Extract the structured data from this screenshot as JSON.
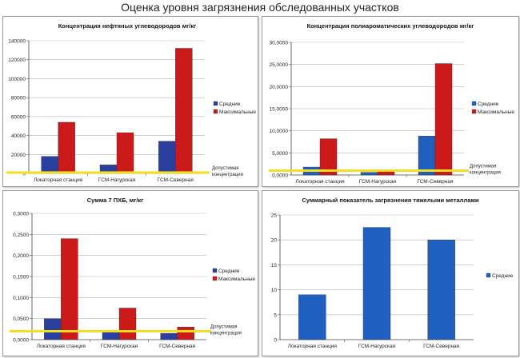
{
  "page_title": "Оценка уровня загрязнения обследованных участков",
  "colors": {
    "avg": "#2b3f9e",
    "max": "#cc1a1a",
    "avg_light": "#1f5fbf",
    "threshold": "#f0e020"
  },
  "chart_data": [
    {
      "type": "bar",
      "title": "Концентрация нефтяных углеводородов мг/кг",
      "categories": [
        "Локаторная станция",
        "ГСМ-Нагурская",
        "ГСМ-Северная"
      ],
      "series": [
        {
          "name": "Средние",
          "values": [
            18000,
            9000,
            34000
          ]
        },
        {
          "name": "Максимальные",
          "values": [
            54000,
            43000,
            132000
          ]
        }
      ],
      "ylim": [
        0,
        140000
      ],
      "yticks": [
        "0",
        "20000",
        "40000",
        "60000",
        "80000",
        "100000",
        "120000",
        "140000"
      ],
      "threshold": {
        "value": 1000,
        "label_line1": "Допустимая",
        "label_line2": "концентрация"
      },
      "legend": "right"
    },
    {
      "type": "bar",
      "title": "Концентрация полиароматических углеводородов мг/кг",
      "categories": [
        "Локаторная станция",
        "ГСМ-Нагурская",
        "ГСМ-Северная"
      ],
      "series": [
        {
          "name": "Средние",
          "values": [
            1800,
            600,
            8800
          ]
        },
        {
          "name": "Максимальные",
          "values": [
            8200,
            900,
            25200
          ]
        }
      ],
      "ylim": [
        0,
        30000
      ],
      "yticks": [
        "0,0000",
        "5,0000",
        "10,0000",
        "15,0000",
        "20,0000",
        "25,0000",
        "30,0000"
      ],
      "threshold": {
        "value": 1000,
        "label_line1": "Допустимая",
        "label_line2": "концентрация"
      },
      "legend": "right"
    },
    {
      "type": "bar",
      "title": "Сумма 7 ПХБ, мг/кг",
      "categories": [
        "Локаторная станция",
        "ГСМ-Нагурская",
        "ГСМ-Северная"
      ],
      "series": [
        {
          "name": "Средние",
          "values": [
            0.05,
            0.02,
            0.015
          ]
        },
        {
          "name": "Максимальные",
          "values": [
            0.24,
            0.075,
            0.03
          ]
        }
      ],
      "ylim": [
        0,
        0.3
      ],
      "yticks": [
        "0,0000",
        "0,0500",
        "0,1000",
        "0,1500",
        "0,2000",
        "0,2500",
        "0,3000"
      ],
      "threshold": {
        "value": 0.02,
        "label_line1": "Допустимая",
        "label_line2": "концентрация"
      },
      "legend": "right"
    },
    {
      "type": "bar",
      "title": "Суммарный показатель загрязнения тяжелыми металлами",
      "categories": [
        "Локаторная станция",
        "ГСМ-Нагурская",
        "ГСМ-Северная"
      ],
      "series": [
        {
          "name": "Средние",
          "values": [
            9,
            22.5,
            20
          ]
        }
      ],
      "ylim": [
        0,
        25
      ],
      "yticks": [
        "0",
        "5",
        "10",
        "15",
        "20",
        "25"
      ],
      "legend": "right"
    }
  ]
}
